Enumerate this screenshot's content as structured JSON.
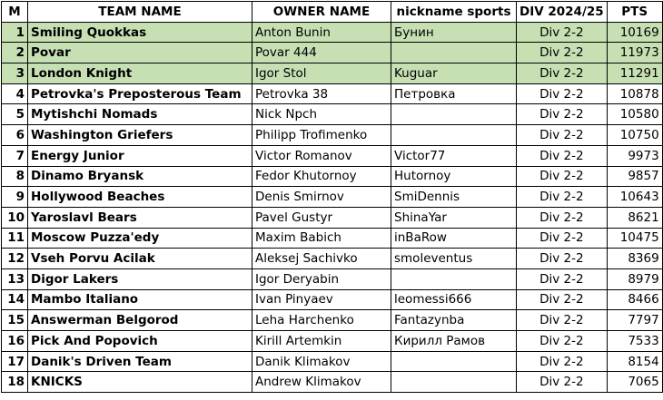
{
  "headers": {
    "m": "M",
    "team": "TEAM NAME",
    "owner": "OWNER NAME",
    "nick": "nickname sports",
    "div": "DIV 2024/25",
    "pts": "PTS"
  },
  "highlight_color": "#c6e0b4",
  "rows": [
    {
      "m": "1",
      "team": "Smiling Quokkas",
      "owner": "Anton Bunin",
      "nick": "Бунин",
      "div": "Div 2-2",
      "pts": "10169",
      "highlight": true
    },
    {
      "m": "2",
      "team": "Povar",
      "owner": "Povar 444",
      "nick": "",
      "div": "Div 2-2",
      "pts": "11973",
      "highlight": true
    },
    {
      "m": "3",
      "team": "London Knight",
      "owner": "Igor Stol",
      "nick": "Kuguar",
      "div": "Div 2-2",
      "pts": "11291",
      "highlight": true
    },
    {
      "m": "4",
      "team": "Petrovka's Preposterous Team",
      "owner": "Petrovka 38",
      "nick": "Петровка",
      "div": "Div 2-2",
      "pts": "10878"
    },
    {
      "m": "5",
      "team": "Mytishchi Nomads",
      "owner": "Nick Npch",
      "nick": "",
      "div": "Div 2-2",
      "pts": "10580"
    },
    {
      "m": "6",
      "team": "Washington Griefers",
      "owner": "Philipp Trofimenko",
      "nick": "",
      "div": "Div 2-2",
      "pts": "10750"
    },
    {
      "m": "7",
      "team": "Energy Junior",
      "owner": "Victor Romanov",
      "nick": "Victor77",
      "div": "Div 2-2",
      "pts": "9973"
    },
    {
      "m": "8",
      "team": "Dinamo Bryansk",
      "owner": "Fedor Khutornoy",
      "nick": "Hutornoy",
      "div": "Div 2-2",
      "pts": "9857"
    },
    {
      "m": "9",
      "team": "Hollywood Beaches",
      "owner": "Denis Smirnov",
      "nick": "SmiDennis",
      "div": "Div 2-2",
      "pts": "10643"
    },
    {
      "m": "10",
      "team": "Yaroslavl Bears",
      "owner": "Pavel Gustyr",
      "nick": "ShinaYar",
      "div": "Div 2-2",
      "pts": "8621"
    },
    {
      "m": "11",
      "team": "Moscow Puzza'edy",
      "owner": "Maxim Babich",
      "nick": "inBaRow",
      "div": "Div 2-2",
      "pts": "10475"
    },
    {
      "m": "12",
      "team": "Vseh Porvu Acilak",
      "owner": "Aleksej Sachivko",
      "nick": "smoleventus",
      "div": "Div 2-2",
      "pts": "8369"
    },
    {
      "m": "13",
      "team": "Digor Lakers",
      "owner": "Igor Deryabin",
      "nick": "",
      "div": "Div 2-2",
      "pts": "8979"
    },
    {
      "m": "14",
      "team": "Mambo Italiano",
      "owner": "Ivan Pinyaev",
      "nick": "leomessi666",
      "div": "Div 2-2",
      "pts": "8466"
    },
    {
      "m": "15",
      "team": "Answerman Belgorod",
      "owner": "Leha Harchenko",
      "nick": "Fantazynba",
      "div": "Div 2-2",
      "pts": "7797"
    },
    {
      "m": "16",
      "team": "Pick And Popovich",
      "owner": "Kirill Artemkin",
      "nick": "Кирилл Рамов",
      "div": "Div 2-2",
      "pts": "7533"
    },
    {
      "m": "17",
      "team": "Danik's Driven Team",
      "owner": "Danik Klimakov",
      "nick": "",
      "div": "Div 2-2",
      "pts": "8154"
    },
    {
      "m": "18",
      "team": "KNICKS",
      "owner": "Andrew Klimakov",
      "nick": "",
      "div": "Div 2-2",
      "pts": "7065"
    }
  ]
}
